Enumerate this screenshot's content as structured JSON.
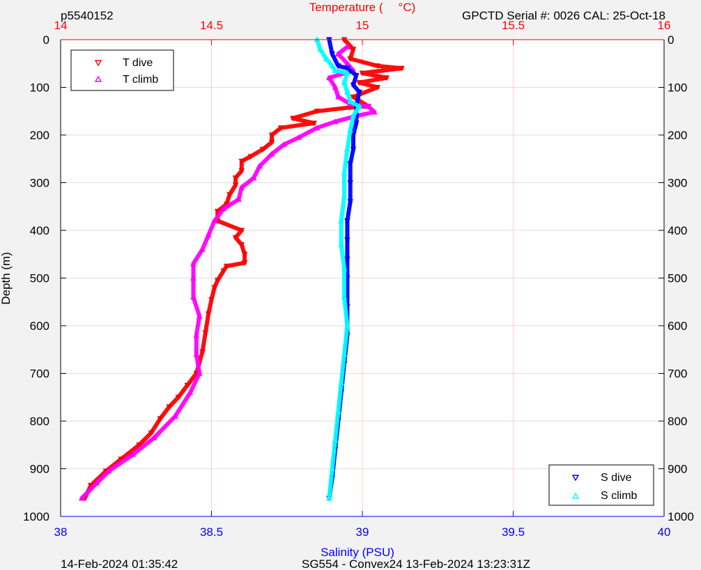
{
  "header": {
    "profile_id": "p5540152",
    "serial_cal": "GPCTD Serial #: 0026 CAL: 25-Oct-18"
  },
  "footer": {
    "timestamp": "14-Feb-2024 01:35:42",
    "mission": "SG554 - Convex24 13-Feb-2024 13:23:31Z"
  },
  "colors": {
    "t_dive": "#ff0000",
    "t_climb": "#ff00ff",
    "s_dive": "#0000ff",
    "s_climb": "#00ffff",
    "temp_axis": "#ff0000",
    "sal_axis": "#0000ff",
    "grid": "#dedede",
    "temp_grid": "#ffcccc",
    "plot_bg": "#ffffff",
    "page_bg": "#f2f2f2"
  },
  "chart_data": {
    "type": "scatter",
    "ylabel": "Depth (m)",
    "temp_label_left": "Temperature (",
    "temp_label_right": "°C)",
    "sal_label": "Salinity (PSU)",
    "depth_range": [
      0,
      1000
    ],
    "depth_ticks": [
      "0",
      "100",
      "200",
      "300",
      "400",
      "500",
      "600",
      "700",
      "800",
      "900",
      "1000"
    ],
    "temp_range": [
      14,
      16
    ],
    "temp_ticks": [
      "14",
      "14.5",
      "15",
      "15.5",
      "16"
    ],
    "sal_range": [
      38,
      40
    ],
    "sal_ticks": [
      "38",
      "38.5",
      "39",
      "39.5",
      "40"
    ],
    "grid": true,
    "legend_temp": {
      "placement": "top-left",
      "entries": [
        "T dive",
        "T climb"
      ]
    },
    "legend_sal": {
      "placement": "bottom-right",
      "entries": [
        "S dive",
        "S climb"
      ]
    },
    "series": [
      {
        "name": "T dive",
        "axis": "temperature",
        "marker": "triangle-down",
        "points": [
          [
            14.94,
            0
          ],
          [
            14.97,
            20
          ],
          [
            14.96,
            40
          ],
          [
            15.05,
            55
          ],
          [
            15.13,
            60
          ],
          [
            15.0,
            70
          ],
          [
            15.08,
            80
          ],
          [
            14.99,
            90
          ],
          [
            15.05,
            100
          ],
          [
            14.97,
            120
          ],
          [
            15.02,
            140
          ],
          [
            14.96,
            142
          ],
          [
            14.85,
            150
          ],
          [
            14.77,
            165
          ],
          [
            14.84,
            175
          ],
          [
            14.73,
            185
          ],
          [
            14.7,
            200
          ],
          [
            14.7,
            215
          ],
          [
            14.67,
            230
          ],
          [
            14.63,
            245
          ],
          [
            14.6,
            255
          ],
          [
            14.6,
            275
          ],
          [
            14.58,
            290
          ],
          [
            14.58,
            305
          ],
          [
            14.56,
            325
          ],
          [
            14.55,
            345
          ],
          [
            14.52,
            360
          ],
          [
            14.52,
            380
          ],
          [
            14.6,
            400
          ],
          [
            14.58,
            415
          ],
          [
            14.6,
            430
          ],
          [
            14.61,
            450
          ],
          [
            14.61,
            468
          ],
          [
            14.55,
            475
          ],
          [
            14.54,
            485
          ],
          [
            14.52,
            505
          ],
          [
            14.51,
            520
          ],
          [
            14.5,
            545
          ],
          [
            14.49,
            575
          ],
          [
            14.48,
            615
          ],
          [
            14.47,
            655
          ],
          [
            14.45,
            700
          ],
          [
            14.42,
            725
          ],
          [
            14.39,
            750
          ],
          [
            14.36,
            770
          ],
          [
            14.33,
            795
          ],
          [
            14.3,
            825
          ],
          [
            14.26,
            850
          ],
          [
            14.2,
            880
          ],
          [
            14.15,
            905
          ],
          [
            14.1,
            935
          ],
          [
            14.08,
            962
          ]
        ]
      },
      {
        "name": "T climb",
        "axis": "temperature",
        "marker": "triangle-up",
        "points": [
          [
            14.95,
            15
          ],
          [
            14.92,
            30
          ],
          [
            14.95,
            50
          ],
          [
            14.97,
            65
          ],
          [
            14.89,
            80
          ],
          [
            14.91,
            100
          ],
          [
            14.92,
            120
          ],
          [
            14.96,
            135
          ],
          [
            15.02,
            140
          ],
          [
            15.04,
            152
          ],
          [
            14.98,
            160
          ],
          [
            14.91,
            172
          ],
          [
            14.85,
            185
          ],
          [
            14.79,
            205
          ],
          [
            14.74,
            220
          ],
          [
            14.7,
            240
          ],
          [
            14.66,
            265
          ],
          [
            14.64,
            290
          ],
          [
            14.6,
            310
          ],
          [
            14.59,
            335
          ],
          [
            14.54,
            355
          ],
          [
            14.51,
            380
          ],
          [
            14.49,
            410
          ],
          [
            14.47,
            440
          ],
          [
            14.44,
            470
          ],
          [
            14.44,
            500
          ],
          [
            14.44,
            540
          ],
          [
            14.46,
            580
          ],
          [
            14.45,
            620
          ],
          [
            14.45,
            660
          ],
          [
            14.46,
            700
          ],
          [
            14.43,
            740
          ],
          [
            14.38,
            790
          ],
          [
            14.31,
            835
          ],
          [
            14.24,
            870
          ],
          [
            14.16,
            905
          ],
          [
            14.12,
            930
          ],
          [
            14.07,
            962
          ]
        ]
      },
      {
        "name": "S dive",
        "axis": "salinity",
        "marker": "triangle-down",
        "points": [
          [
            38.89,
            0
          ],
          [
            38.9,
            30
          ],
          [
            38.92,
            55
          ],
          [
            38.95,
            60
          ],
          [
            38.98,
            75
          ],
          [
            38.97,
            95
          ],
          [
            38.99,
            110
          ],
          [
            38.98,
            140
          ],
          [
            38.98,
            160
          ],
          [
            38.98,
            175
          ],
          [
            38.97,
            200
          ],
          [
            38.97,
            230
          ],
          [
            38.96,
            260
          ],
          [
            38.96,
            300
          ],
          [
            38.96,
            340
          ],
          [
            38.95,
            380
          ],
          [
            38.95,
            420
          ],
          [
            38.95,
            460
          ],
          [
            38.95,
            500
          ],
          [
            38.95,
            560
          ],
          [
            38.95,
            620
          ],
          [
            38.94,
            680
          ],
          [
            38.93,
            740
          ],
          [
            38.92,
            800
          ],
          [
            38.91,
            860
          ],
          [
            38.9,
            920
          ],
          [
            38.89,
            962
          ]
        ]
      },
      {
        "name": "S climb",
        "axis": "salinity",
        "marker": "triangle-up",
        "points": [
          [
            38.85,
            0
          ],
          [
            38.86,
            20
          ],
          [
            38.88,
            40
          ],
          [
            38.9,
            55
          ],
          [
            38.91,
            65
          ],
          [
            38.95,
            70
          ],
          [
            38.94,
            90
          ],
          [
            38.95,
            110
          ],
          [
            38.96,
            130
          ],
          [
            38.99,
            140
          ],
          [
            38.97,
            160
          ],
          [
            38.96,
            190
          ],
          [
            38.95,
            230
          ],
          [
            38.94,
            280
          ],
          [
            38.94,
            330
          ],
          [
            38.93,
            380
          ],
          [
            38.93,
            430
          ],
          [
            38.94,
            480
          ],
          [
            38.94,
            540
          ],
          [
            38.95,
            600
          ],
          [
            38.94,
            660
          ],
          [
            38.93,
            720
          ],
          [
            38.92,
            780
          ],
          [
            38.91,
            840
          ],
          [
            38.9,
            900
          ],
          [
            38.89,
            962
          ]
        ]
      }
    ]
  }
}
